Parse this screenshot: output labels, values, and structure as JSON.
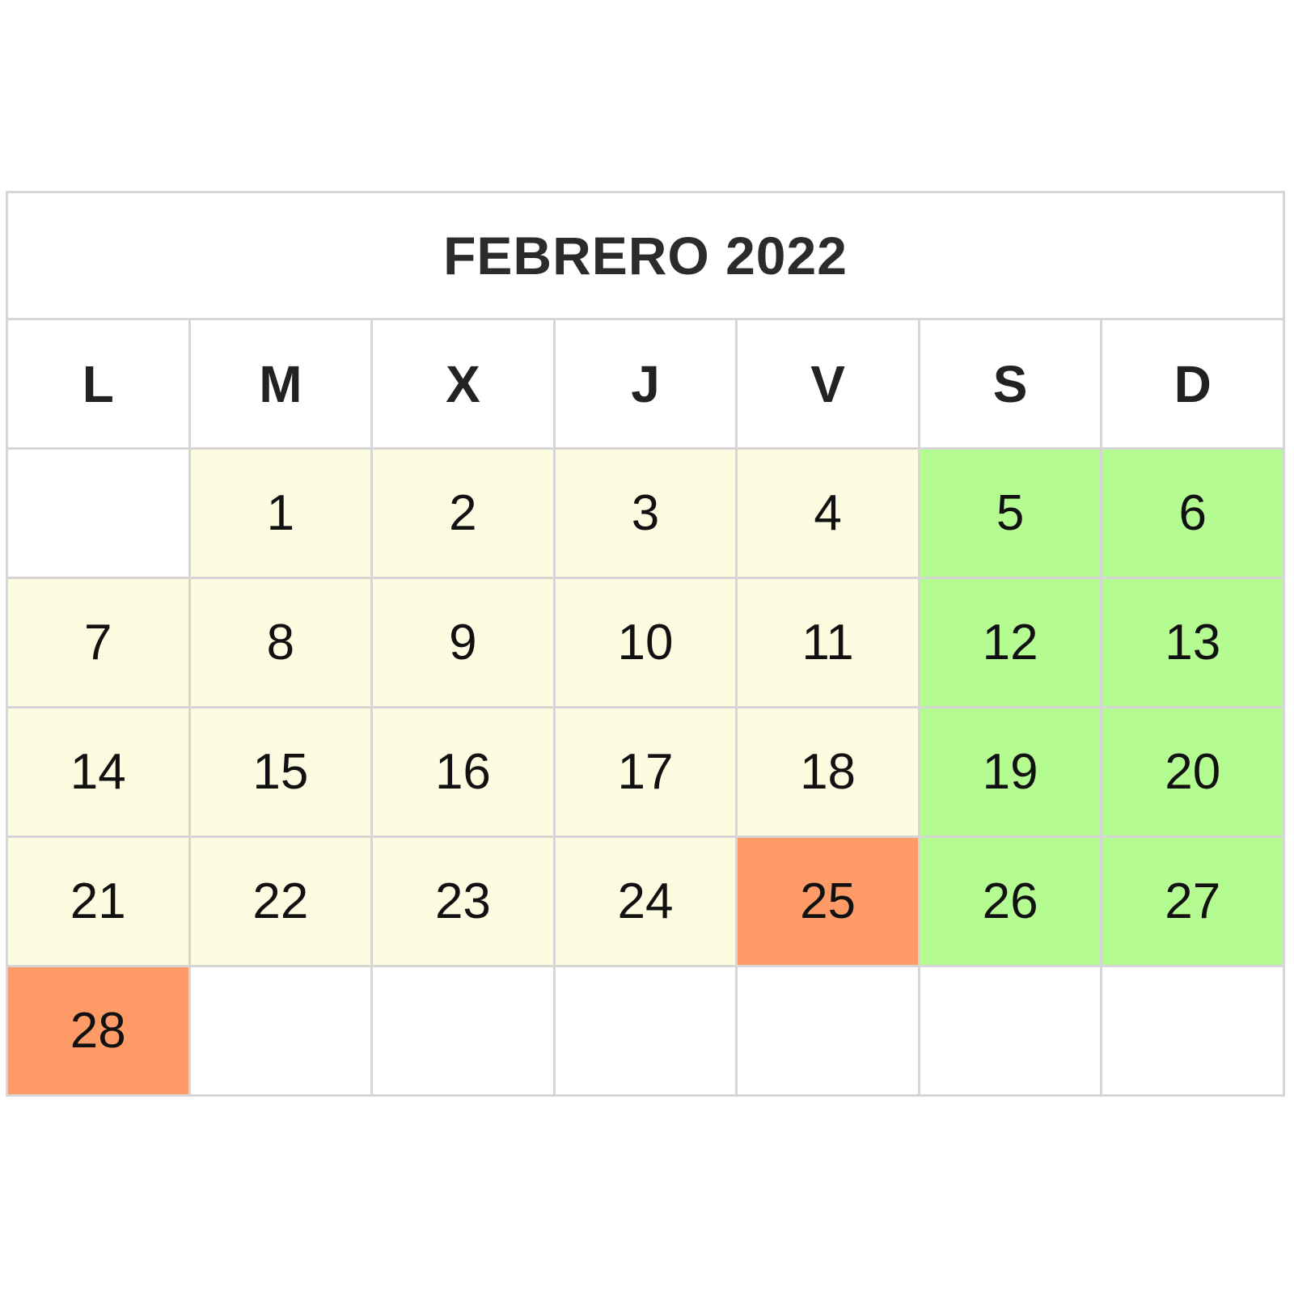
{
  "calendar": {
    "title": "FEBRERO 2022",
    "weekdays": [
      "L",
      "M",
      "X",
      "J",
      "V",
      "S",
      "D"
    ],
    "colors": {
      "weekday": "#fefce0",
      "weekend": "#b4fb91",
      "highlight": "#fe9b66",
      "empty": "#ffffff",
      "grid": "#d6d6d6"
    },
    "weeks": [
      [
        {
          "day": "",
          "kind": "empty"
        },
        {
          "day": "1",
          "kind": "weekday"
        },
        {
          "day": "2",
          "kind": "weekday"
        },
        {
          "day": "3",
          "kind": "weekday"
        },
        {
          "day": "4",
          "kind": "weekday"
        },
        {
          "day": "5",
          "kind": "weekend"
        },
        {
          "day": "6",
          "kind": "weekend"
        }
      ],
      [
        {
          "day": "7",
          "kind": "weekday"
        },
        {
          "day": "8",
          "kind": "weekday"
        },
        {
          "day": "9",
          "kind": "weekday"
        },
        {
          "day": "10",
          "kind": "weekday"
        },
        {
          "day": "11",
          "kind": "weekday"
        },
        {
          "day": "12",
          "kind": "weekend"
        },
        {
          "day": "13",
          "kind": "weekend"
        }
      ],
      [
        {
          "day": "14",
          "kind": "weekday"
        },
        {
          "day": "15",
          "kind": "weekday"
        },
        {
          "day": "16",
          "kind": "weekday"
        },
        {
          "day": "17",
          "kind": "weekday"
        },
        {
          "day": "18",
          "kind": "weekday"
        },
        {
          "day": "19",
          "kind": "weekend"
        },
        {
          "day": "20",
          "kind": "weekend"
        }
      ],
      [
        {
          "day": "21",
          "kind": "weekday"
        },
        {
          "day": "22",
          "kind": "weekday"
        },
        {
          "day": "23",
          "kind": "weekday"
        },
        {
          "day": "24",
          "kind": "weekday"
        },
        {
          "day": "25",
          "kind": "highlight"
        },
        {
          "day": "26",
          "kind": "weekend"
        },
        {
          "day": "27",
          "kind": "weekend"
        }
      ],
      [
        {
          "day": "28",
          "kind": "highlight"
        },
        {
          "day": "",
          "kind": "empty"
        },
        {
          "day": "",
          "kind": "empty"
        },
        {
          "day": "",
          "kind": "empty"
        },
        {
          "day": "",
          "kind": "empty"
        },
        {
          "day": "",
          "kind": "empty"
        },
        {
          "day": "",
          "kind": "empty"
        }
      ]
    ]
  }
}
